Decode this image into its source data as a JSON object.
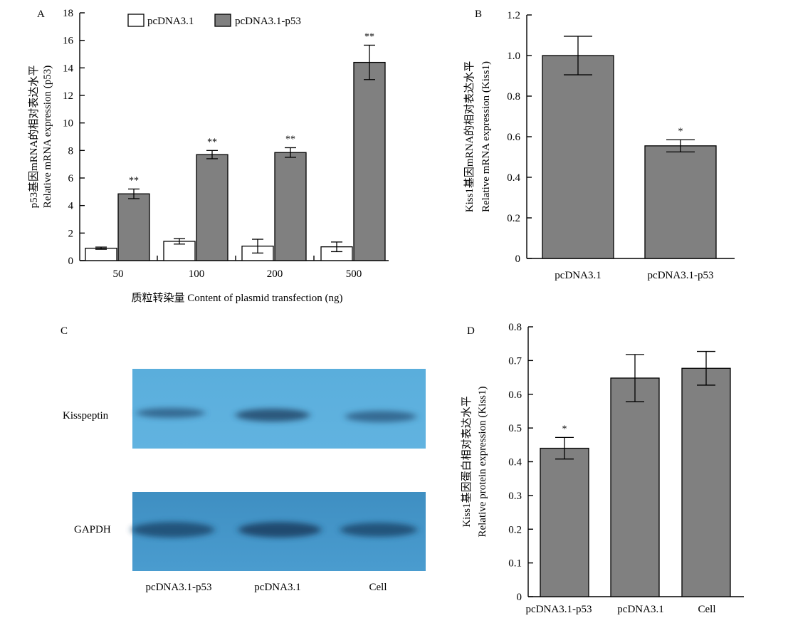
{
  "chart_data": [
    {
      "panel": "A",
      "type": "bar",
      "categories": [
        "50",
        "100",
        "200",
        "500"
      ],
      "series": [
        {
          "name": "pcDNA3.1",
          "values": [
            0.9,
            1.4,
            1.05,
            1.0
          ],
          "errors": [
            0.08,
            0.2,
            0.5,
            0.35
          ],
          "color": "#ffffff",
          "marks": [
            "",
            "",
            "",
            ""
          ]
        },
        {
          "name": "pcDNA3.1-p53",
          "values": [
            4.85,
            7.7,
            7.85,
            14.4
          ],
          "errors": [
            0.35,
            0.3,
            0.35,
            1.25
          ],
          "color": "#808080",
          "marks": [
            "**",
            "**",
            "**",
            "**"
          ]
        }
      ],
      "xlabel": "质粒转染量 Content of plasmid transfection (ng)",
      "ylabel": [
        "p53基因mRNA的相对表达水平",
        "Relative mRNA expression (p53)"
      ],
      "ylim": [
        0,
        18
      ],
      "yticks": [
        0,
        2,
        4,
        6,
        8,
        10,
        12,
        14,
        16,
        18
      ],
      "legend": "top"
    },
    {
      "panel": "B",
      "type": "bar",
      "categories": [
        "pcDNA3.1",
        "pcDNA3.1-p53"
      ],
      "values": [
        1.0,
        0.555
      ],
      "errors": [
        0.095,
        0.03
      ],
      "marks": [
        "",
        "*"
      ],
      "color": "#808080",
      "ylabel": [
        "Kiss1基因mRNA的相对表达水平",
        "Relative mRNA expression (Kiss1)"
      ],
      "ylim": [
        0,
        1.2
      ],
      "yticks": [
        "0",
        "0.2",
        "0.4",
        "0.6",
        "0.8",
        "1.0",
        "1.2"
      ]
    },
    {
      "panel": "D",
      "type": "bar",
      "categories": [
        "pcDNA3.1-p53",
        "pcDNA3.1",
        "Cell"
      ],
      "values": [
        0.44,
        0.648,
        0.677
      ],
      "errors": [
        0.032,
        0.07,
        0.05
      ],
      "marks": [
        "*",
        "",
        ""
      ],
      "color": "#808080",
      "ylabel": [
        "Kiss1基因蛋白相对表达水平",
        "Relative protein expression (Kiss1)"
      ],
      "ylim": [
        0,
        0.8
      ],
      "yticks": [
        "0",
        "0.1",
        "0.2",
        "0.3",
        "0.4",
        "0.5",
        "0.6",
        "0.7",
        "0.8"
      ]
    }
  ],
  "blot": {
    "panel": "C",
    "rows": [
      "Kisspeptin",
      "GAPDH"
    ],
    "lanes": [
      "pcDNA3.1-p53",
      "pcDNA3.1",
      "Cell"
    ],
    "background": "#5aaedc",
    "band_color": "#2f5f86"
  }
}
